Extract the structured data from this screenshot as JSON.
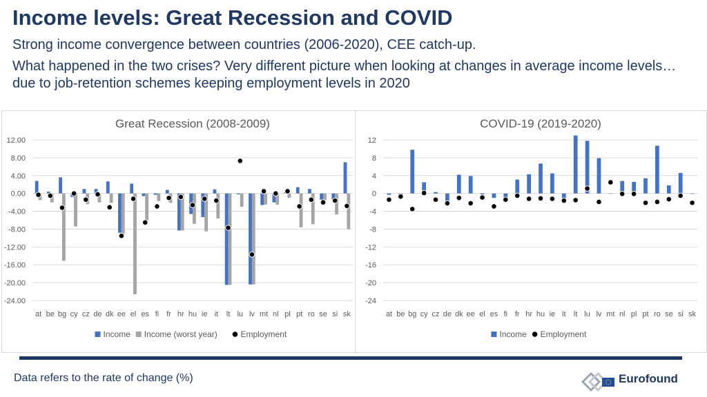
{
  "header": {
    "title": "Income levels: Great Recession and COVID",
    "subtitle": "Strong income convergence between countries (2006-2020), CEE catch-up.",
    "question": "What happened in the two crises? Very different picture when looking at changes in average income levels…due to job-retention schemes keeping employment levels in 2020"
  },
  "footer": {
    "note": "Data refers to the rate of change (%)",
    "logo_text": "Eurofound"
  },
  "colors": {
    "income": "#4472c4",
    "income_worst": "#a5a5a5",
    "employment": "#000000",
    "text": "#1f3864",
    "grid": "#d9d9d9",
    "axis_text": "#595959"
  },
  "chart_data": [
    {
      "type": "bar",
      "title": "Great Recession (2008-2009)",
      "categories": [
        "at",
        "be",
        "bg",
        "cy",
        "cz",
        "de",
        "dk",
        "ee",
        "el",
        "es",
        "fi",
        "fr",
        "hr",
        "hu",
        "ie",
        "it",
        "lt",
        "lu",
        "lv",
        "mt",
        "nl",
        "pl",
        "pt",
        "ro",
        "se",
        "si",
        "sk"
      ],
      "ylim": [
        -24,
        12
      ],
      "yticks": [
        "12.00",
        "8.00",
        "4.00",
        "0.00",
        "-4.00",
        "-8.00",
        "-12.00",
        "-16.00",
        "-20.00",
        "-24.00"
      ],
      "ytick_values": [
        12,
        8,
        4,
        0,
        -4,
        -8,
        -12,
        -16,
        -20,
        -24
      ],
      "series": [
        {
          "name": "Income",
          "kind": "bar",
          "values": [
            2.8,
            0.4,
            3.6,
            -0.8,
            1.0,
            1.0,
            2.7,
            -8.8,
            2.2,
            -0.6,
            -0.3,
            0.8,
            -8.3,
            -4.6,
            -5.3,
            0.9,
            -20.5,
            -0.2,
            -20.4,
            -2.6,
            -2.0,
            0.3,
            1.4,
            1.0,
            -1.4,
            -1.3,
            7.0
          ]
        },
        {
          "name": "Income (worst year)",
          "kind": "bar",
          "values": [
            -1.5,
            -2.0,
            -15.1,
            -7.4,
            -2.4,
            -2.0,
            -2.1,
            -9.0,
            -22.6,
            -6.0,
            -1.7,
            -2.1,
            -8.3,
            -6.8,
            -8.5,
            -5.6,
            -20.5,
            -3.0,
            -20.4,
            -2.5,
            -2.5,
            -1.0,
            -7.6,
            -6.9,
            -1.5,
            -4.7,
            -8.0
          ]
        },
        {
          "name": "Employment",
          "kind": "dot",
          "values": [
            -0.3,
            -0.5,
            -3.2,
            0.0,
            -1.4,
            -0.2,
            -3.1,
            -9.5,
            -1.2,
            -6.5,
            -2.9,
            -1.0,
            -0.8,
            -2.6,
            -1.2,
            -1.6,
            -7.7,
            7.3,
            -13.7,
            0.5,
            0.0,
            0.5,
            -2.9,
            -1.4,
            -2.0,
            -1.6,
            -2.8
          ]
        }
      ],
      "legend": [
        "Income",
        "Income (worst year)",
        "Employment"
      ],
      "legend_position": "bottom"
    },
    {
      "type": "bar",
      "title": "COVID-19 (2019-2020)",
      "categories": [
        "at",
        "be",
        "bg",
        "cy",
        "cz",
        "de",
        "dk",
        "ee",
        "el",
        "es",
        "fi",
        "fr",
        "hr",
        "hu",
        "ie",
        "it",
        "lt",
        "lu",
        "lv",
        "mt",
        "nl",
        "pl",
        "pt",
        "ro",
        "se",
        "si",
        "sk"
      ],
      "ylim": [
        -24,
        12
      ],
      "yticks": [
        "12",
        "8",
        "4",
        "0",
        "-4",
        "-8",
        "-12",
        "-16",
        "-20",
        "-24"
      ],
      "ytick_values": [
        12,
        8,
        4,
        0,
        -4,
        -8,
        -12,
        -16,
        -20,
        -24
      ],
      "series": [
        {
          "name": "Income",
          "kind": "bar",
          "values": [
            -0.3,
            -0.2,
            9.8,
            2.5,
            0.3,
            -1.8,
            4.2,
            3.9,
            -0.2,
            -1.0,
            -1.0,
            3.1,
            4.3,
            6.7,
            4.5,
            -1.1,
            13.0,
            11.8,
            7.9,
            0.0,
            2.8,
            2.6,
            3.4,
            10.7,
            1.8,
            4.6,
            -0.1
          ]
        },
        {
          "name": "Employment",
          "kind": "dot",
          "values": [
            -1.4,
            -0.7,
            -3.5,
            0.1,
            -1.4,
            -2.2,
            -1.0,
            -2.2,
            -0.9,
            -2.9,
            -1.4,
            -0.5,
            -1.2,
            -1.1,
            -1.2,
            -1.6,
            -1.5,
            1.1,
            -1.9,
            2.5,
            -0.1,
            -0.1,
            -2.1,
            -1.9,
            -1.3,
            -0.5,
            -2.1
          ]
        }
      ],
      "legend": [
        "Income",
        "Employment"
      ],
      "legend_position": "bottom"
    }
  ]
}
